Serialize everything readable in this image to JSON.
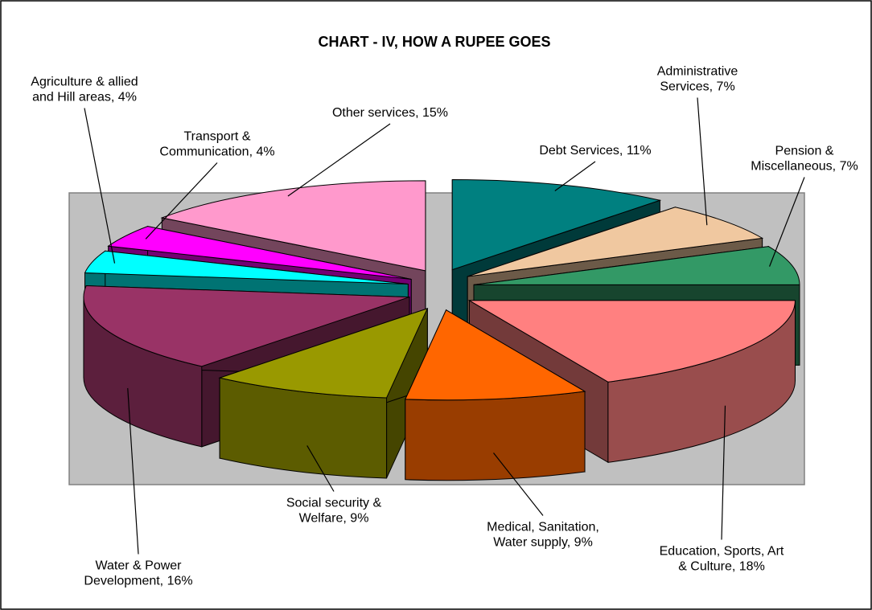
{
  "chart_data": {
    "type": "pie3d",
    "title": "CHART - IV, HOW A RUPEE GOES",
    "values": [
      11,
      7,
      7,
      18,
      9,
      9,
      16,
      4,
      4,
      15
    ],
    "value_labels": [
      "Debt Services, 11%",
      "Administrative Services, 7%",
      "Pension & Miscellaneous, 7%",
      "Education, Sports, Art & Culture, 18%",
      "Medical, Sanitation, Water supply, 9%",
      "Social security & Welfare, 9%",
      "Water & Power Development, 16%",
      "Agriculture & allied and Hill areas, 4%",
      "Transport & Communication, 4%",
      "Other services, 15%"
    ],
    "colors": [
      "#008080",
      "#f0c8a0",
      "#339966",
      "#ff8080",
      "#ff6600",
      "#999900",
      "#993366",
      "#00ffff",
      "#ff00ff",
      "#ff99cc"
    ]
  }
}
